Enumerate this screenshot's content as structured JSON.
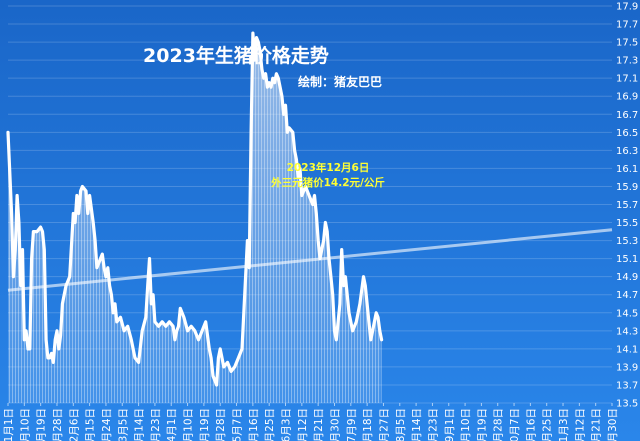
{
  "chart_data": {
    "type": "area",
    "title": "2023年生猪价格走势",
    "subtitle": "绘制：猪友巴巴",
    "annotation": [
      "2023年12月6日",
      "外三元猪价14.2元/公斤"
    ],
    "ylim": [
      13.5,
      17.9
    ],
    "yticks": [
      13.5,
      13.7,
      13.9,
      14.1,
      14.3,
      14.5,
      14.7,
      14.9,
      15.1,
      15.3,
      15.5,
      15.7,
      15.9,
      16.1,
      16.3,
      16.5,
      16.7,
      16.9,
      17.1,
      17.3,
      17.5,
      17.7,
      17.9
    ],
    "xtick_labels": [
      "1月1日",
      "1月10日",
      "1月19日",
      "1月28日",
      "2月6日",
      "2月15日",
      "2月24日",
      "3月5日",
      "3月14日",
      "3月23日",
      "4月1日",
      "4月10日",
      "4月19日",
      "4月28日",
      "5月7日",
      "5月16日",
      "5月25日",
      "6月3日",
      "6月12日",
      "6月21日",
      "6月30日",
      "7月9日",
      "7月18日",
      "7月27日",
      "8月5日",
      "8月14日",
      "8月23日",
      "9月1日",
      "9月10日",
      "9月19日",
      "9月28日",
      "10月7日",
      "10月16日",
      "10月25日",
      "11月3日",
      "11月12日",
      "11月21日",
      "11月30日"
    ],
    "xtick_step_days": 9,
    "x_start": "2023-01-01",
    "series": [
      {
        "name": "外三元猪价",
        "color": "#ffffff",
        "points": [
          [
            "2023-01-01",
            16.5
          ],
          [
            "2023-01-03",
            15.6
          ],
          [
            "2023-01-04",
            14.9
          ],
          [
            "2023-01-05",
            15.2
          ],
          [
            "2023-01-06",
            15.8
          ],
          [
            "2023-01-07",
            15.5
          ],
          [
            "2023-01-08",
            14.8
          ],
          [
            "2023-01-09",
            15.2
          ],
          [
            "2023-01-10",
            14.2
          ],
          [
            "2023-01-11",
            14.3
          ],
          [
            "2023-01-12",
            14.1
          ],
          [
            "2023-01-13",
            14.1
          ],
          [
            "2023-01-14",
            15.1
          ],
          [
            "2023-01-15",
            15.4
          ],
          [
            "2023-01-17",
            15.4
          ],
          [
            "2023-01-19",
            15.45
          ],
          [
            "2023-01-20",
            15.4
          ],
          [
            "2023-01-21",
            15.2
          ],
          [
            "2023-01-22",
            14.2
          ],
          [
            "2023-01-23",
            14.0
          ],
          [
            "2023-01-24",
            14.0
          ],
          [
            "2023-01-25",
            14.05
          ],
          [
            "2023-01-26",
            13.95
          ],
          [
            "2023-01-27",
            14.2
          ],
          [
            "2023-01-28",
            14.3
          ],
          [
            "2023-01-29",
            14.1
          ],
          [
            "2023-01-30",
            14.25
          ],
          [
            "2023-01-31",
            14.6
          ],
          [
            "2023-02-02",
            14.8
          ],
          [
            "2023-02-04",
            14.9
          ],
          [
            "2023-02-06",
            15.6
          ],
          [
            "2023-02-07",
            15.5
          ],
          [
            "2023-02-08",
            15.8
          ],
          [
            "2023-02-09",
            15.6
          ],
          [
            "2023-02-10",
            15.85
          ],
          [
            "2023-02-11",
            15.9
          ],
          [
            "2023-02-13",
            15.85
          ],
          [
            "2023-02-14",
            15.6
          ],
          [
            "2023-02-15",
            15.8
          ],
          [
            "2023-02-17",
            15.5
          ],
          [
            "2023-02-18",
            15.3
          ],
          [
            "2023-02-19",
            15.0
          ],
          [
            "2023-02-21",
            15.1
          ],
          [
            "2023-02-22",
            15.15
          ],
          [
            "2023-02-23",
            15.0
          ],
          [
            "2023-02-24",
            14.9
          ],
          [
            "2023-02-25",
            15.0
          ],
          [
            "2023-02-26",
            14.8
          ],
          [
            "2023-02-27",
            14.7
          ],
          [
            "2023-02-28",
            14.5
          ],
          [
            "2023-03-01",
            14.6
          ],
          [
            "2023-03-02",
            14.4
          ],
          [
            "2023-03-04",
            14.45
          ],
          [
            "2023-03-06",
            14.3
          ],
          [
            "2023-03-08",
            14.35
          ],
          [
            "2023-03-10",
            14.2
          ],
          [
            "2023-03-12",
            14.0
          ],
          [
            "2023-03-14",
            13.95
          ],
          [
            "2023-03-16",
            14.3
          ],
          [
            "2023-03-18",
            14.45
          ],
          [
            "2023-03-19",
            14.8
          ],
          [
            "2023-03-20",
            15.1
          ],
          [
            "2023-03-21",
            14.6
          ],
          [
            "2023-03-22",
            14.7
          ],
          [
            "2023-03-23",
            14.4
          ],
          [
            "2023-03-25",
            14.35
          ],
          [
            "2023-03-27",
            14.4
          ],
          [
            "2023-03-29",
            14.35
          ],
          [
            "2023-03-31",
            14.4
          ],
          [
            "2023-04-02",
            14.35
          ],
          [
            "2023-04-03",
            14.2
          ],
          [
            "2023-04-04",
            14.3
          ],
          [
            "2023-04-05",
            14.35
          ],
          [
            "2023-04-06",
            14.55
          ],
          [
            "2023-04-08",
            14.45
          ],
          [
            "2023-04-10",
            14.3
          ],
          [
            "2023-04-12",
            14.35
          ],
          [
            "2023-04-14",
            14.3
          ],
          [
            "2023-04-16",
            14.2
          ],
          [
            "2023-04-18",
            14.3
          ],
          [
            "2023-04-20",
            14.4
          ],
          [
            "2023-04-22",
            14.1
          ],
          [
            "2023-04-23",
            14.0
          ],
          [
            "2023-04-24",
            13.8
          ],
          [
            "2023-04-25",
            13.75
          ],
          [
            "2023-04-26",
            13.7
          ],
          [
            "2023-04-27",
            14.0
          ],
          [
            "2023-04-28",
            14.1
          ],
          [
            "2023-04-30",
            13.9
          ],
          [
            "2023-05-02",
            13.95
          ],
          [
            "2023-05-04",
            13.85
          ],
          [
            "2023-05-06",
            13.9
          ],
          [
            "2023-05-08",
            14.0
          ],
          [
            "2023-05-10",
            14.1
          ],
          [
            "2023-05-11",
            14.5
          ],
          [
            "2023-05-12",
            14.9
          ],
          [
            "2023-05-13",
            15.3
          ],
          [
            "2023-05-14",
            15.0
          ],
          [
            "2023-05-15",
            16.5
          ],
          [
            "2023-05-16",
            17.6
          ],
          [
            "2023-05-17",
            17.3
          ],
          [
            "2023-05-18",
            17.55
          ],
          [
            "2023-05-19",
            17.5
          ],
          [
            "2023-05-20",
            17.4
          ],
          [
            "2023-05-21",
            17.2
          ],
          [
            "2023-05-22",
            17.1
          ],
          [
            "2023-05-23",
            17.15
          ],
          [
            "2023-05-24",
            17.0
          ],
          [
            "2023-05-25",
            17.05
          ],
          [
            "2023-05-26",
            17.0
          ],
          [
            "2023-05-27",
            17.1
          ],
          [
            "2023-05-28",
            17.05
          ],
          [
            "2023-05-29",
            17.15
          ],
          [
            "2023-05-30",
            17.1
          ],
          [
            "2023-05-31",
            17.0
          ],
          [
            "2023-06-01",
            16.9
          ],
          [
            "2023-06-02",
            16.7
          ],
          [
            "2023-06-03",
            16.8
          ],
          [
            "2023-06-04",
            16.5
          ],
          [
            "2023-06-05",
            16.55
          ],
          [
            "2023-06-07",
            16.5
          ],
          [
            "2023-06-08",
            16.3
          ],
          [
            "2023-06-09",
            16.2
          ],
          [
            "2023-06-10",
            16.0
          ],
          [
            "2023-06-11",
            16.1
          ],
          [
            "2023-06-12",
            15.8
          ],
          [
            "2023-06-14",
            15.9
          ],
          [
            "2023-06-16",
            15.8
          ],
          [
            "2023-06-18",
            15.7
          ],
          [
            "2023-06-19",
            15.8
          ],
          [
            "2023-06-20",
            15.6
          ],
          [
            "2023-06-21",
            15.3
          ],
          [
            "2023-06-22",
            15.1
          ],
          [
            "2023-06-23",
            15.2
          ],
          [
            "2023-06-24",
            15.3
          ],
          [
            "2023-06-25",
            15.5
          ],
          [
            "2023-06-26",
            15.4
          ],
          [
            "2023-06-27",
            15.1
          ],
          [
            "2023-06-28",
            14.9
          ],
          [
            "2023-06-29",
            14.7
          ],
          [
            "2023-06-30",
            14.3
          ],
          [
            "2023-07-01",
            14.2
          ],
          [
            "2023-07-03",
            14.6
          ],
          [
            "2023-07-04",
            15.2
          ],
          [
            "2023-07-05",
            14.8
          ],
          [
            "2023-07-06",
            14.9
          ],
          [
            "2023-07-07",
            14.7
          ],
          [
            "2023-07-08",
            14.5
          ],
          [
            "2023-07-09",
            14.4
          ],
          [
            "2023-07-10",
            14.3
          ],
          [
            "2023-07-12",
            14.4
          ],
          [
            "2023-07-14",
            14.6
          ],
          [
            "2023-07-16",
            14.9
          ],
          [
            "2023-07-17",
            14.8
          ],
          [
            "2023-07-18",
            14.6
          ],
          [
            "2023-07-19",
            14.4
          ],
          [
            "2023-07-20",
            14.2
          ],
          [
            "2023-07-21",
            14.3
          ],
          [
            "2023-07-23",
            14.5
          ],
          [
            "2023-07-24",
            14.45
          ],
          [
            "2023-07-25",
            14.3
          ],
          [
            "2023-07-26",
            14.2
          ]
        ]
      }
    ],
    "trendline": {
      "start": 14.75,
      "end": 15.42
    },
    "grid": true
  }
}
